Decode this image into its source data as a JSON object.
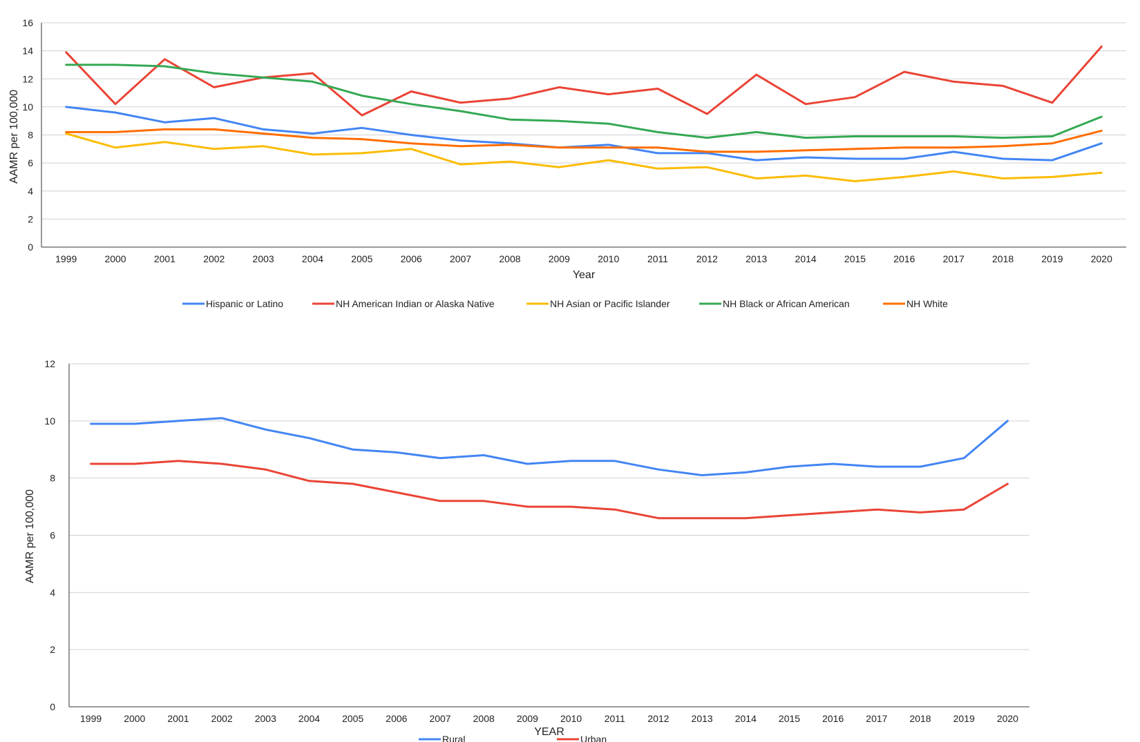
{
  "chart_data": [
    {
      "type": "line",
      "title": "",
      "xlabel": "Year",
      "ylabel": "AAMR per 100,000",
      "ylim": [
        0,
        16
      ],
      "y_ticks": [
        0,
        2,
        4,
        6,
        8,
        10,
        12,
        14,
        16
      ],
      "grid": true,
      "legend_position": "bottom",
      "categories": [
        "1999",
        "2000",
        "2001",
        "2002",
        "2003",
        "2004",
        "2005",
        "2006",
        "2007",
        "2008",
        "2009",
        "2010",
        "2011",
        "2012",
        "2013",
        "2014",
        "2015",
        "2016",
        "2017",
        "2018",
        "2019",
        "2020"
      ],
      "series": [
        {
          "name": "Hispanic or Latino",
          "color": "#4285f4",
          "values": [
            10.0,
            9.6,
            8.9,
            9.2,
            8.4,
            8.1,
            8.5,
            8.0,
            7.6,
            7.4,
            7.1,
            7.3,
            6.7,
            6.7,
            6.2,
            6.4,
            6.3,
            6.3,
            6.8,
            6.3,
            6.2,
            7.4
          ]
        },
        {
          "name": "NH American Indian or Alaska Native",
          "color": "#ea4335",
          "values": [
            13.9,
            10.2,
            13.4,
            11.4,
            12.1,
            12.4,
            9.4,
            11.1,
            10.3,
            10.6,
            11.4,
            10.9,
            11.3,
            9.5,
            12.3,
            10.2,
            10.7,
            12.5,
            11.8,
            11.5,
            10.3,
            14.3
          ]
        },
        {
          "name": "NH Asian or Pacific Islander",
          "color": "#fbbc04",
          "values": [
            8.1,
            7.1,
            7.5,
            7.0,
            7.2,
            6.6,
            6.7,
            7.0,
            5.9,
            6.1,
            5.7,
            6.2,
            5.6,
            5.7,
            4.9,
            5.1,
            4.7,
            5.0,
            5.4,
            4.9,
            5.0,
            5.3
          ]
        },
        {
          "name": "NH Black or African American",
          "color": "#34a853",
          "values": [
            13.0,
            13.0,
            12.9,
            12.4,
            12.1,
            11.8,
            10.8,
            10.2,
            9.7,
            9.1,
            9.0,
            8.8,
            8.2,
            7.8,
            8.2,
            7.8,
            7.9,
            7.9,
            7.9,
            7.8,
            7.9,
            9.3
          ]
        },
        {
          "name": "NH White",
          "color": "#ff6d01",
          "values": [
            8.2,
            8.2,
            8.4,
            8.4,
            8.1,
            7.8,
            7.7,
            7.4,
            7.2,
            7.3,
            7.1,
            7.1,
            7.1,
            6.8,
            6.8,
            6.9,
            7.0,
            7.1,
            7.1,
            7.2,
            7.4,
            8.3
          ]
        }
      ]
    },
    {
      "type": "line",
      "title": "",
      "xlabel": "YEAR",
      "ylabel": "AAMR per 100,000",
      "ylim": [
        0,
        12
      ],
      "y_ticks": [
        0,
        2,
        4,
        6,
        8,
        10,
        12
      ],
      "grid": true,
      "legend_position": "bottom",
      "categories": [
        "1999",
        "2000",
        "2001",
        "2002",
        "2003",
        "2004",
        "2005",
        "2006",
        "2007",
        "2008",
        "2009",
        "2010",
        "2011",
        "2012",
        "2013",
        "2014",
        "2015",
        "2016",
        "2017",
        "2018",
        "2019",
        "2020"
      ],
      "series": [
        {
          "name": "Rural",
          "color": "#4285f4",
          "values": [
            9.9,
            9.9,
            10.0,
            10.1,
            9.7,
            9.4,
            9.0,
            8.9,
            8.7,
            8.8,
            8.5,
            8.6,
            8.6,
            8.3,
            8.1,
            8.2,
            8.4,
            8.5,
            8.4,
            8.4,
            8.7,
            10.0
          ]
        },
        {
          "name": "Urban",
          "color": "#ea4335",
          "values": [
            8.5,
            8.5,
            8.6,
            8.5,
            8.3,
            7.9,
            7.8,
            7.5,
            7.2,
            7.2,
            7.0,
            7.0,
            6.9,
            6.6,
            6.6,
            6.6,
            6.7,
            6.8,
            6.9,
            6.8,
            6.9,
            7.8
          ]
        }
      ]
    }
  ]
}
